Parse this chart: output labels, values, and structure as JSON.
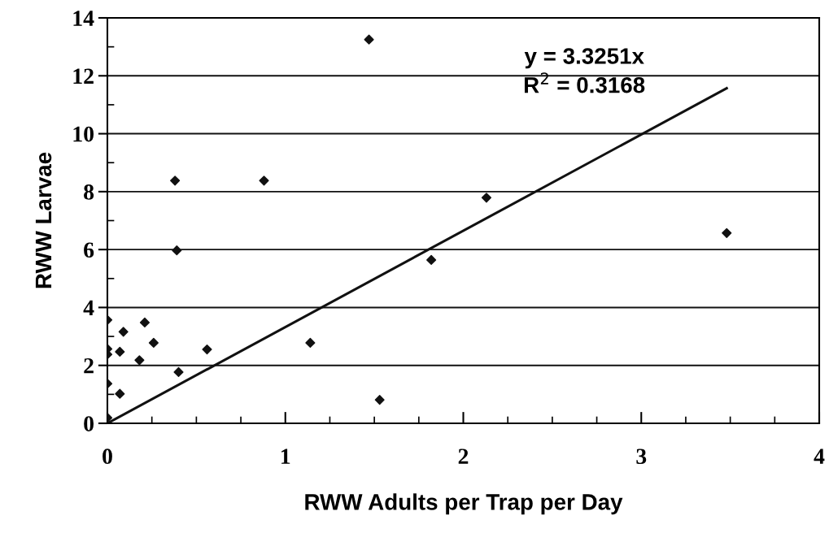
{
  "chart_data": {
    "type": "scatter",
    "xlabel": "RWW Adults per Trap per Day",
    "ylabel": "RWW Larvae",
    "xlim": [
      0,
      4
    ],
    "xticks": [
      0,
      1,
      2,
      3,
      4
    ],
    "ylim": [
      0,
      14
    ],
    "yticks": [
      0,
      2,
      4,
      6,
      8,
      10,
      12,
      14
    ],
    "grid": "y",
    "legend": false,
    "series": [
      {
        "color": "#111111",
        "marker": "diamond",
        "x": [
          0,
          0,
          0,
          0,
          0,
          0.07,
          0.07,
          0.09,
          0.18,
          0.21,
          0.26,
          0.38,
          0.88,
          0.39,
          0.4,
          0.56,
          1.14,
          1.47,
          1.53,
          2.13,
          1.82,
          3.48
        ],
        "values": [
          3.57,
          2.57,
          2.38,
          1.37,
          0.19,
          1.02,
          2.47,
          3.16,
          2.18,
          3.48,
          2.78,
          8.38,
          8.38,
          5.97,
          1.77,
          2.55,
          2.78,
          13.25,
          0.81,
          7.79,
          5.64,
          6.57
        ]
      },
      {
        "type": "line",
        "color": "#111111",
        "marker": "none",
        "line_style": "solid",
        "x": [
          0,
          3.48
        ],
        "values": [
          0,
          11.57
        ]
      }
    ],
    "annotations": [
      "y = 3.3251x\nR$^{2}$ = 0.3168"
    ]
  }
}
